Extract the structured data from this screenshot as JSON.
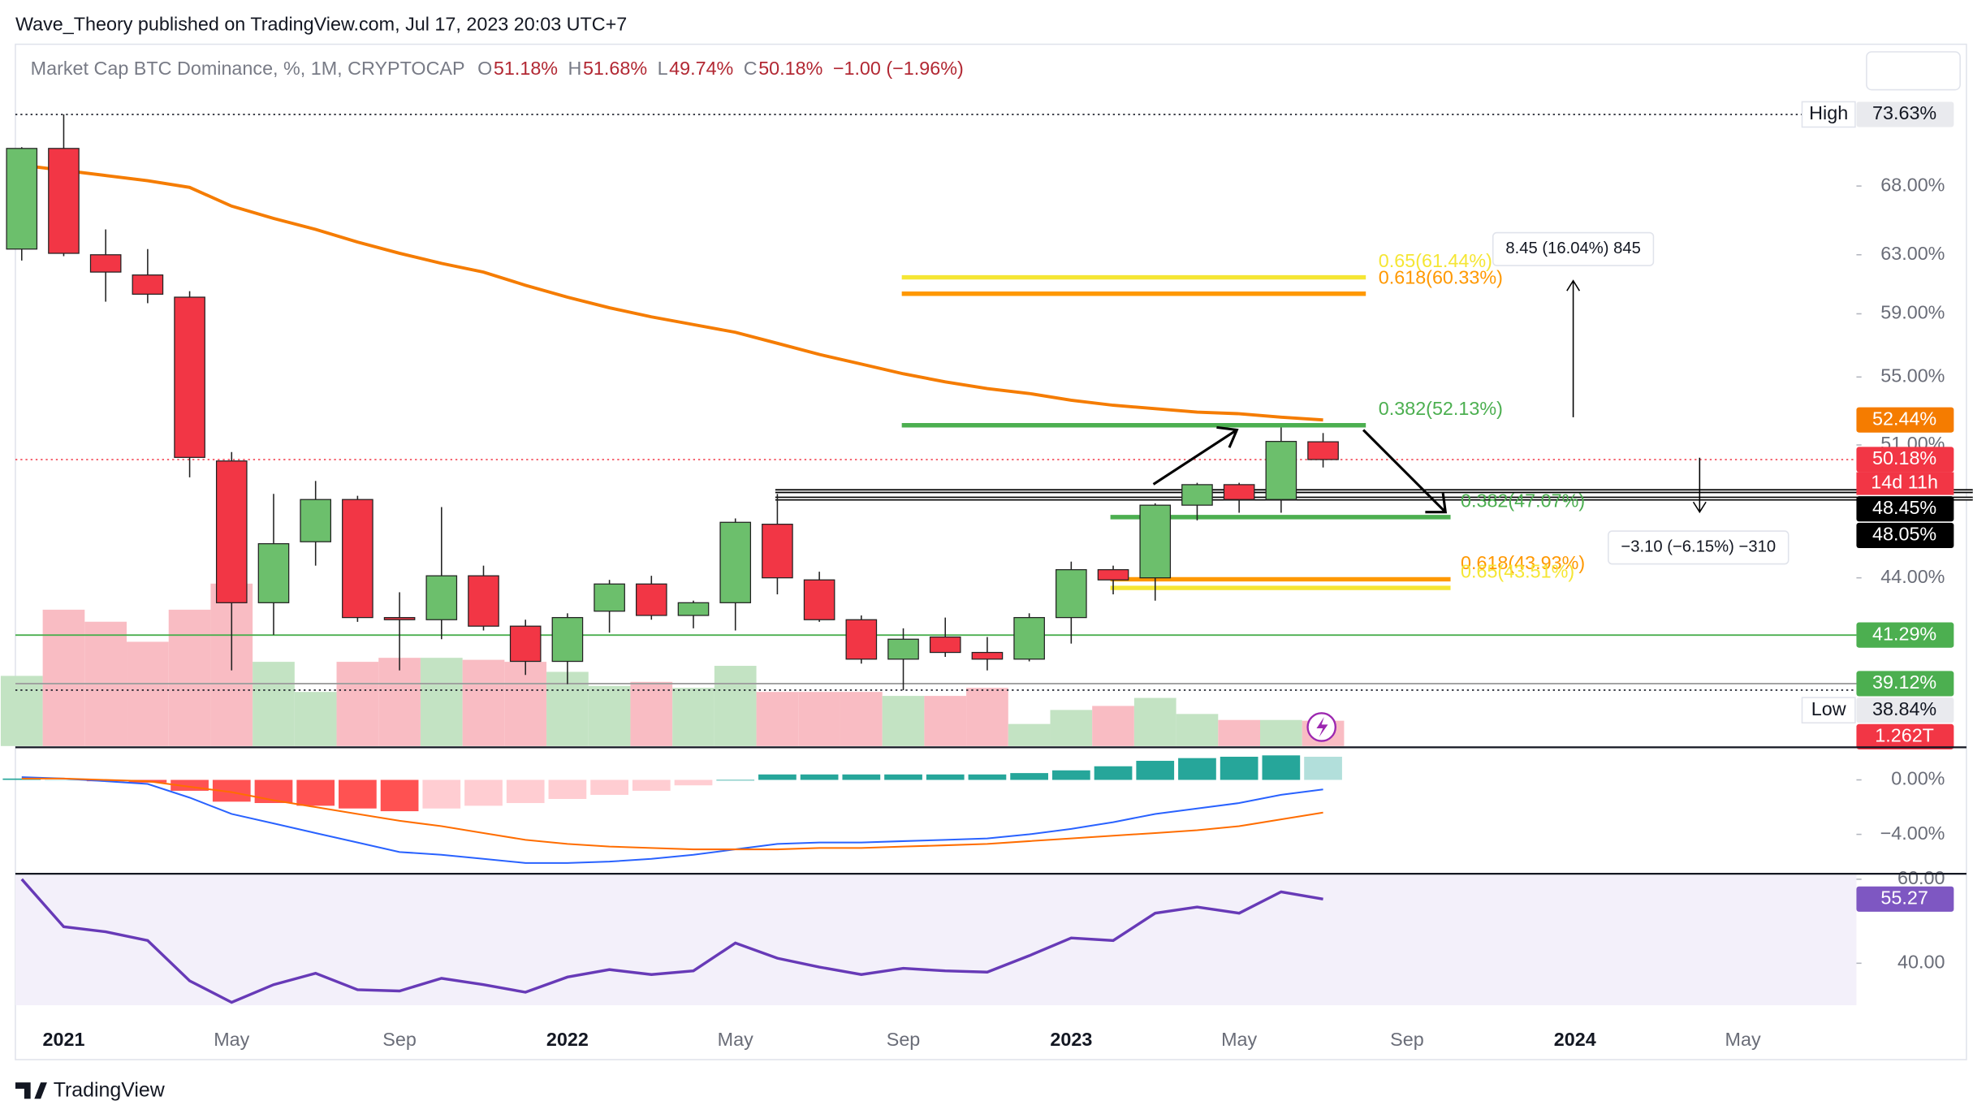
{
  "header": {
    "publisher": "Wave_Theory published on TradingView.com, Jul 17, 2023 20:03 UTC+7",
    "brand": "TradingView"
  },
  "chart_data": {
    "type": "candlestick",
    "title": "Market Cap BTC Dominance, %, 1M, CRYPTOCAP",
    "legend_ohlc": [
      {
        "key": "O",
        "text": "51.18%"
      },
      {
        "key": "H",
        "text": "51.68%"
      },
      {
        "key": "L",
        "text": "49.74%"
      },
      {
        "key": "C",
        "text": "50.18%"
      }
    ],
    "legend_change": "−1.00 (−1.96%)",
    "log_scale": true,
    "categories": [
      null,
      "2021",
      null,
      null,
      null,
      "May",
      null,
      null,
      null,
      "Sep",
      null,
      null,
      null,
      "2022",
      null,
      null,
      null,
      "May",
      null,
      null,
      null,
      "Sep",
      null,
      null,
      null,
      "2023",
      null,
      null,
      null,
      "May",
      null,
      null,
      null,
      "Sep",
      null,
      null,
      null,
      "2024",
      null,
      null,
      null,
      "May"
    ],
    "open": [
      63.4,
      70.9,
      63.0,
      61.6,
      60.1,
      50.1,
      42.8,
      45.8,
      48.0,
      42.1,
      42.0,
      44.1,
      41.7,
      40.1,
      42.4,
      43.7,
      42.2,
      42.8,
      46.7,
      43.9,
      42.0,
      40.2,
      41.2,
      40.5,
      40.2,
      42.1,
      44.4,
      44.0,
      47.7,
      48.8,
      48.0,
      51.18,
      null,
      null,
      null,
      null,
      null,
      null,
      null,
      null,
      null,
      null
    ],
    "high": [
      71.0,
      73.63,
      64.8,
      63.4,
      60.5,
      50.6,
      48.3,
      49.0,
      48.2,
      43.3,
      47.6,
      44.6,
      42.0,
      42.3,
      43.9,
      44.1,
      42.9,
      47.0,
      48.3,
      44.3,
      42.2,
      41.6,
      42.1,
      41.2,
      42.3,
      44.8,
      44.6,
      47.8,
      48.9,
      48.9,
      52.0,
      51.68,
      null,
      null,
      null,
      null,
      null,
      null,
      null,
      null,
      null,
      null
    ],
    "low": [
      62.6,
      62.9,
      59.8,
      59.7,
      49.2,
      39.7,
      41.3,
      44.6,
      41.9,
      39.7,
      41.1,
      41.5,
      39.5,
      39.1,
      41.4,
      42.0,
      41.6,
      41.5,
      43.2,
      41.9,
      40.0,
      38.84,
      40.3,
      39.7,
      40.1,
      40.9,
      43.2,
      42.9,
      46.9,
      47.3,
      47.3,
      49.74,
      null,
      null,
      null,
      null,
      null,
      null,
      null,
      null,
      null,
      null
    ],
    "close": [
      70.9,
      63.1,
      61.8,
      60.3,
      50.3,
      42.8,
      45.7,
      48.0,
      42.1,
      42.0,
      44.1,
      41.7,
      40.1,
      42.1,
      43.7,
      42.2,
      42.8,
      46.8,
      44.0,
      42.0,
      40.2,
      41.1,
      40.5,
      40.2,
      42.1,
      44.4,
      43.9,
      47.7,
      48.8,
      48.0,
      51.2,
      50.18,
      null,
      null,
      null,
      null,
      null,
      null,
      null,
      null,
      null,
      null
    ],
    "up_color": "#6cbf6c",
    "down_color": "#f23645",
    "ylim": [
      36.5,
      79.6
    ],
    "yticks": [
      {
        "value": 68,
        "label": "68.00%"
      },
      {
        "value": 63,
        "label": "63.00%"
      },
      {
        "value": 59,
        "label": "59.00%"
      },
      {
        "value": 55,
        "label": "55.00%"
      },
      {
        "value": 51,
        "label": "51.00%"
      },
      {
        "value": 44,
        "label": "44.00%"
      }
    ],
    "ma": {
      "color": "#f57c00",
      "values": [
        69.6,
        69.2,
        68.8,
        68.4,
        67.9,
        66.5,
        65.6,
        64.8,
        63.9,
        63.1,
        62.4,
        61.8,
        60.9,
        60.1,
        59.4,
        58.8,
        58.3,
        57.8,
        57.1,
        56.4,
        55.8,
        55.2,
        54.7,
        54.3,
        54.0,
        53.6,
        53.3,
        53.1,
        52.9,
        52.8,
        52.6,
        52.44,
        null,
        null,
        null,
        null,
        null,
        null,
        null,
        null,
        null,
        null
      ]
    },
    "volume": {
      "vlim": [
        0,
        35
      ],
      "last_label": "1.262T",
      "up_color": "#c3e3c3",
      "down_color": "#f9bcc3",
      "badge_color": "#f23645",
      "values": [
        3.5,
        6.8,
        6.2,
        5.2,
        6.8,
        8.1,
        4.2,
        2.7,
        4.2,
        4.4,
        4.4,
        4.3,
        4.2,
        3.7,
        3.0,
        3.2,
        2.9,
        4.0,
        2.7,
        2.7,
        2.7,
        2.5,
        2.5,
        2.9,
        1.1,
        1.8,
        2.0,
        2.4,
        1.6,
        1.3,
        1.3,
        1.262,
        null,
        null,
        null,
        null,
        null,
        null,
        null,
        null,
        null,
        null
      ]
    },
    "levels": [
      {
        "value": 73.63,
        "label": "73.63%",
        "caption": "High",
        "color": "#e9eaee",
        "text_color": "#131722",
        "line": "dotted",
        "line_color": "#131722"
      },
      {
        "value": 52.44,
        "label": "52.44%",
        "color": "#f57c00",
        "text_color": "#ffffff",
        "line": "none",
        "line_color": "#f57c00"
      },
      {
        "value": 50.18,
        "label": "50.18%",
        "caption": "14d 11h",
        "color": "#f23645",
        "text_color": "#ffffff",
        "line": "dotted",
        "line_color": "#f23645"
      },
      {
        "value": 48.45,
        "label": "48.45%",
        "color": "#000000",
        "text_color": "#ffffff",
        "line": "double",
        "line_color": "#000000"
      },
      {
        "value": 48.05,
        "label": "48.05%",
        "color": "#000000",
        "text_color": "#ffffff",
        "line": "double",
        "line_color": "#000000"
      },
      {
        "value": 41.29,
        "label": "41.29%",
        "color": "#4caf50",
        "text_color": "#ffffff",
        "line": "solid",
        "line_color": "#4caf50"
      },
      {
        "value": 39.12,
        "label": "39.12%",
        "color": "#4caf50",
        "text_color": "#ffffff",
        "line": "solid",
        "line_color": "#9e9e9e"
      },
      {
        "value": 38.84,
        "label": "38.84%",
        "caption": "Low",
        "color": "#e9eaee",
        "text_color": "#131722",
        "line": "dotted",
        "line_color": "#131722"
      }
    ],
    "fib_upper": [
      {
        "value": 61.44,
        "label": "0.65(61.44%)",
        "color": "#f5e634"
      },
      {
        "value": 60.33,
        "label": "0.618(60.33%)",
        "color": "#ff9800"
      },
      {
        "value": 52.13,
        "label": "0.382(52.13%)",
        "color": "#4caf50"
      }
    ],
    "fib_lower": [
      {
        "value": 47.07,
        "label": "0.382(47.07%)",
        "color": "#4caf50"
      },
      {
        "value": 43.93,
        "label": "0.618(43.93%)",
        "color": "#ff9800"
      },
      {
        "value": 43.51,
        "label": "0.65(43.51%)",
        "color": "#f5e634"
      }
    ],
    "measures": [
      {
        "label": "8.45 (16.04%) 845"
      },
      {
        "label": "−3.10 (−6.15%) −310"
      }
    ],
    "macd": {
      "ylim": [
        -6.8,
        2.3
      ],
      "yticks": [
        {
          "value": 0,
          "label": "0.00%"
        },
        {
          "value": -4,
          "label": "−4.00%"
        }
      ],
      "macd_color": "#2962ff",
      "signal_color": "#ff6d00",
      "hist_colors": [
        "#26a69a",
        "#b2dfdb",
        "#ff5252",
        "#ffcdd2"
      ],
      "macd": [
        0.2,
        0.1,
        -0.1,
        -0.3,
        -1.3,
        -2.5,
        -3.2,
        -3.9,
        -4.6,
        -5.3,
        -5.5,
        -5.8,
        -6.1,
        -6.1,
        -6.0,
        -5.8,
        -5.5,
        -5.1,
        -4.7,
        -4.6,
        -4.6,
        -4.5,
        -4.4,
        -4.3,
        -4.0,
        -3.6,
        -3.1,
        -2.5,
        -2.1,
        -1.7,
        -1.1,
        -0.7,
        null,
        null,
        null,
        null,
        null,
        null,
        null,
        null,
        null,
        null
      ],
      "signal": [
        0.1,
        0.1,
        0.0,
        -0.1,
        -0.5,
        -0.9,
        -1.5,
        -2.0,
        -2.5,
        -3.0,
        -3.4,
        -3.9,
        -4.4,
        -4.7,
        -4.9,
        -5.0,
        -5.1,
        -5.1,
        -5.1,
        -5.0,
        -5.0,
        -4.9,
        -4.8,
        -4.7,
        -4.5,
        -4.3,
        -4.1,
        -3.9,
        -3.7,
        -3.4,
        -2.9,
        -2.4,
        null,
        null,
        null,
        null,
        null,
        null,
        null,
        null,
        null,
        null
      ],
      "hist": [
        0.1,
        0.0,
        -0.1,
        -0.2,
        -0.8,
        -1.6,
        -1.7,
        -1.9,
        -2.1,
        -2.3,
        -2.1,
        -1.9,
        -1.7,
        -1.4,
        -1.1,
        -0.8,
        -0.4,
        0.0,
        0.4,
        0.4,
        0.4,
        0.4,
        0.4,
        0.4,
        0.5,
        0.7,
        1.0,
        1.4,
        1.6,
        1.7,
        1.8,
        1.7,
        null,
        null,
        null,
        null,
        null,
        null,
        null,
        null,
        null,
        null
      ]
    },
    "rsi": {
      "ylim": [
        30,
        61
      ],
      "yticks": [
        {
          "value": 40,
          "label": "40.00"
        },
        {
          "value": 60,
          "label": "60.00"
        }
      ],
      "color": "#673ab7",
      "last_label": "55.27",
      "values": [
        60,
        48.7,
        47.5,
        45.4,
        35.8,
        30.7,
        34.9,
        37.6,
        33.7,
        33.4,
        36.4,
        34.9,
        33.1,
        36.7,
        38.5,
        37.3,
        38.2,
        44.8,
        41.2,
        39.1,
        37.3,
        38.8,
        38.2,
        37.9,
        41.8,
        46.0,
        45.4,
        51.9,
        53.4,
        51.9,
        57.0,
        55.27,
        null,
        null,
        null,
        null,
        null,
        null,
        null,
        null,
        null,
        null
      ]
    }
  }
}
